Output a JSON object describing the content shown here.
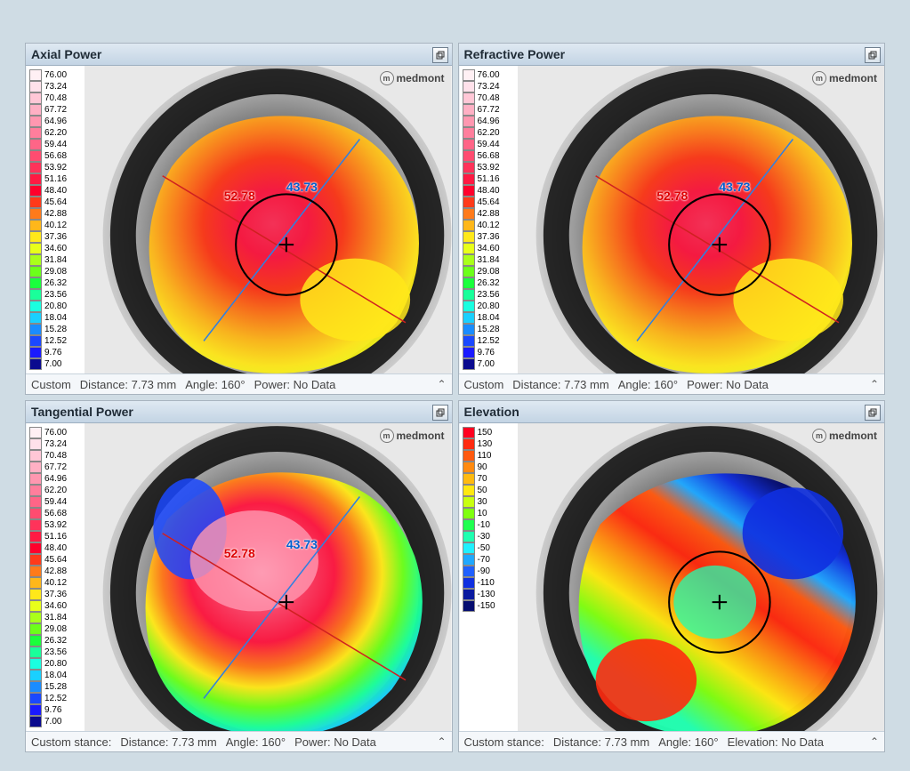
{
  "watermark": "medmont",
  "power_legend": {
    "values": [
      "76.00",
      "73.24",
      "70.48",
      "67.72",
      "64.96",
      "62.20",
      "59.44",
      "56.68",
      "53.92",
      "51.16",
      "48.40",
      "45.64",
      "42.88",
      "40.12",
      "37.36",
      "34.60",
      "31.84",
      "29.08",
      "26.32",
      "23.56",
      "20.80",
      "18.04",
      "15.28",
      "12.52",
      "9.76",
      "7.00"
    ],
    "colors": [
      "#fff0f4",
      "#ffe1ea",
      "#ffc7d6",
      "#ffb0c4",
      "#ff97b0",
      "#ff7e9c",
      "#ff6587",
      "#ff4c70",
      "#ff335a",
      "#ff1a43",
      "#ff002c",
      "#ff3a1a",
      "#ff7a1a",
      "#ffb71a",
      "#ffe81a",
      "#e8ff1a",
      "#aaff1a",
      "#6cff1a",
      "#1aff3c",
      "#1aff9a",
      "#1affe0",
      "#1ad0ff",
      "#1a8cff",
      "#1a48ff",
      "#1a1aff",
      "#0b0b8f"
    ]
  },
  "elevation_legend": {
    "values": [
      "150",
      "130",
      "110",
      "90",
      "70",
      "50",
      "30",
      "10",
      "-10",
      "-30",
      "-50",
      "-70",
      "-90",
      "-110",
      "-130",
      "-150"
    ],
    "colors": [
      "#ff0020",
      "#ff2a10",
      "#ff5a10",
      "#ff8a10",
      "#ffba10",
      "#ffe810",
      "#c8ff10",
      "#80ff10",
      "#20ff50",
      "#20ffb0",
      "#20f0ff",
      "#20a8ff",
      "#2060ff",
      "#1030e0",
      "#0a1aa0",
      "#050d70"
    ]
  },
  "panels": [
    {
      "key": "axial",
      "title": "Axial Power",
      "legend": "power",
      "footer": {
        "mode": "Custom",
        "distance": "7.73 mm",
        "angle": "160°",
        "metric_label": "Power:",
        "metric_value": "No Data"
      },
      "overlay": {
        "red": "52.78",
        "blue": "43.73",
        "show_circle": true,
        "show_axes": true
      }
    },
    {
      "key": "refractive",
      "title": "Refractive Power",
      "legend": "power",
      "footer": {
        "mode": "Custom",
        "distance": "7.73 mm",
        "angle": "160°",
        "metric_label": "Power:",
        "metric_value": "No Data"
      },
      "overlay": {
        "red": "52.78",
        "blue": "43.73",
        "show_circle": true,
        "show_axes": true
      }
    },
    {
      "key": "tangential",
      "title": "Tangential Power",
      "legend": "power",
      "footer": {
        "mode": "Custom stance:",
        "distance": "7.73 mm",
        "angle": "160°",
        "metric_label": "Power:",
        "metric_value": "No Data"
      },
      "overlay": {
        "red": "52.78",
        "blue": "43.73",
        "show_circle": false,
        "show_axes": true
      }
    },
    {
      "key": "elevation",
      "title": "Elevation",
      "legend": "elevation",
      "footer": {
        "mode": "Custom stance:",
        "distance": "7.73 mm",
        "angle": "160°",
        "metric_label": "Elevation:",
        "metric_value": "No Data"
      },
      "overlay": {
        "red": null,
        "blue": null,
        "show_circle": true,
        "show_axes": false
      }
    }
  ],
  "map_style": {
    "eye_bg_colors": [
      "#0a0a0a",
      "#2a2a2a",
      "#5a5a5a",
      "#9a9a9a",
      "#d0d0d0",
      "#f0f0f0"
    ],
    "axial_stops": [
      {
        "o": "0%",
        "c": "#ff335a"
      },
      {
        "o": "20%",
        "c": "#ff1a43"
      },
      {
        "o": "40%",
        "c": "#ff3a1a"
      },
      {
        "o": "55%",
        "c": "#ff7a1a"
      },
      {
        "o": "70%",
        "c": "#ffb71a"
      },
      {
        "o": "85%",
        "c": "#ffe81a"
      },
      {
        "o": "100%",
        "c": "#e8ff1a"
      }
    ],
    "tangential_stops": [
      {
        "o": "0%",
        "c": "#ffb0c4"
      },
      {
        "o": "18%",
        "c": "#ff4c70"
      },
      {
        "o": "35%",
        "c": "#ff1a43"
      },
      {
        "o": "48%",
        "c": "#ff7a1a"
      },
      {
        "o": "58%",
        "c": "#ffe81a"
      },
      {
        "o": "68%",
        "c": "#6cff1a"
      },
      {
        "o": "78%",
        "c": "#1aff9a"
      },
      {
        "o": "86%",
        "c": "#1ad0ff"
      },
      {
        "o": "94%",
        "c": "#1a48ff"
      },
      {
        "o": "100%",
        "c": "#0b0b8f"
      }
    ],
    "elevation_stops": [
      {
        "o": "0%",
        "c": "#20ffb0"
      },
      {
        "o": "15%",
        "c": "#80ff10"
      },
      {
        "o": "28%",
        "c": "#ffe810"
      },
      {
        "o": "42%",
        "c": "#ff8a10"
      },
      {
        "o": "55%",
        "c": "#ff2a10"
      },
      {
        "o": "68%",
        "c": "#ff5a10"
      },
      {
        "o": "78%",
        "c": "#20a8ff"
      },
      {
        "o": "90%",
        "c": "#1030e0"
      },
      {
        "o": "100%",
        "c": "#050d70"
      }
    ],
    "axis_red": "#d02020",
    "axis_blue": "#3080e0",
    "circle_stroke": "#000000",
    "cross_stroke": "#000000"
  }
}
